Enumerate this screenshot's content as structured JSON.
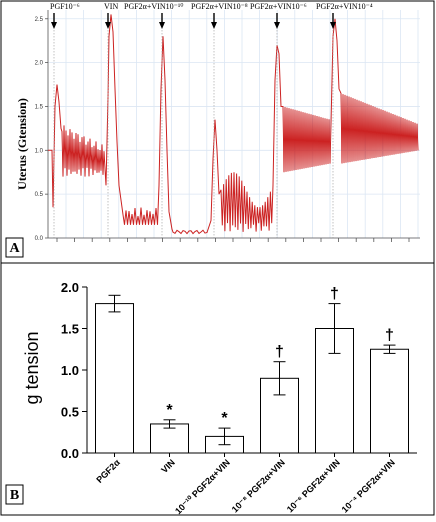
{
  "chart_data": [
    {
      "panel_label": "A",
      "type": "line",
      "ylabel": "Uterus (Gtension)",
      "y_ticks": [
        "0.0",
        "0.5",
        "1.0",
        "1.5",
        "2.0",
        "2.5"
      ],
      "ylim": [
        0,
        2.6
      ],
      "grid": true,
      "series_color": "#cc2222",
      "annotations": [
        {
          "text": "PGF10⁻⁶"
        },
        {
          "text": "VIN"
        },
        {
          "text": "PGF2α+VIN10⁻¹⁰"
        },
        {
          "text": "PGF2α+VIN10⁻⁸"
        },
        {
          "text": "PGF2α+VIN10⁻⁶"
        },
        {
          "text": "PGF2α+VIN10⁻⁴"
        }
      ]
    },
    {
      "panel_label": "B",
      "type": "bar",
      "ylabel": "g tension",
      "ylim": [
        0,
        2.0
      ],
      "y_ticks": [
        "0.0",
        "0.5",
        "1.0",
        "1.5",
        "2.0"
      ],
      "categories": [
        "PGF2α",
        "VIN",
        "10⁻¹⁰ PGF2α+VIN",
        "10⁻⁸ PGF2α+VIN",
        "10⁻⁶ PGF2α+VIN",
        "10⁻⁴ PGF2α+VIN"
      ],
      "values": [
        1.8,
        0.35,
        0.2,
        0.9,
        1.5,
        1.25
      ],
      "errors": [
        0.1,
        0.05,
        0.1,
        0.2,
        0.3,
        0.05
      ],
      "significance": [
        "",
        "*",
        "*",
        "†",
        "†",
        "†"
      ]
    }
  ]
}
